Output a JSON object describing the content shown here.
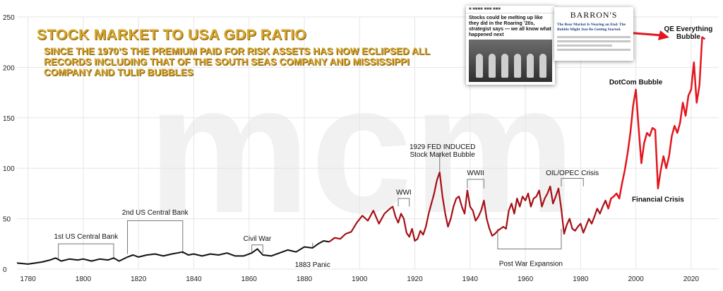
{
  "header": {
    "title": "STOCK MARKET TO USA GDP RATIO",
    "subtitle": "SINCE THE 1970’s THE PREMIUM PAID FOR RISK ASSETS HAS NOW ECLIPSED ALL RECORDS INCLUDING THAT OF THE SOUTH SEAS COMPANY AND MISSISSIPPI COMPANY AND TULIP BUBBLES"
  },
  "clippings": {
    "marketwatch_headline": "Stocks could be melting up like they did in the Roaring ’20s, strategist says — we all know what happened next",
    "barrons_logo": "BARRON'S",
    "barrons_headline": "The Bear Market Is Nearing an End. The Bubble Might Just Be Getting Started."
  },
  "colors": {
    "line_early": "#111111",
    "line_late": "#a50f15",
    "line_recent": "#e3161e",
    "gold": "#d9a629",
    "grid": "#e6e6e6"
  },
  "chart_data": {
    "type": "line",
    "xlim": [
      1776,
      2030
    ],
    "ylim": [
      0,
      250
    ],
    "x_ticks": [
      1780,
      1800,
      1820,
      1840,
      1860,
      1880,
      1900,
      1920,
      1940,
      1960,
      1980,
      2000,
      2020
    ],
    "y_ticks": [
      0,
      50,
      100,
      150,
      200,
      250
    ],
    "grid": true,
    "series": [
      {
        "values": [
          [
            1776,
            6
          ],
          [
            1780,
            5
          ],
          [
            1785,
            7
          ],
          [
            1788,
            9
          ],
          [
            1790,
            11
          ],
          [
            1792,
            8
          ],
          [
            1795,
            10
          ],
          [
            1798,
            9
          ],
          [
            1800,
            10
          ],
          [
            1803,
            8
          ],
          [
            1806,
            10
          ],
          [
            1809,
            9
          ],
          [
            1811,
            11
          ],
          [
            1813,
            8
          ],
          [
            1816,
            12
          ],
          [
            1818,
            14
          ],
          [
            1820,
            12
          ],
          [
            1823,
            14
          ],
          [
            1826,
            15
          ],
          [
            1829,
            13
          ],
          [
            1832,
            15
          ],
          [
            1834,
            16
          ],
          [
            1836,
            17
          ],
          [
            1838,
            14
          ],
          [
            1840,
            15
          ],
          [
            1843,
            13
          ],
          [
            1846,
            15
          ],
          [
            1849,
            14
          ],
          [
            1852,
            16
          ],
          [
            1855,
            13
          ],
          [
            1858,
            13
          ],
          [
            1861,
            16
          ],
          [
            1863,
            20
          ],
          [
            1865,
            14
          ],
          [
            1868,
            13
          ],
          [
            1871,
            16
          ],
          [
            1874,
            19
          ],
          [
            1877,
            17
          ],
          [
            1880,
            22
          ],
          [
            1883,
            21
          ],
          [
            1885,
            25
          ],
          [
            1887,
            28
          ],
          [
            1889,
            27
          ],
          [
            1891,
            31
          ],
          [
            1893,
            30
          ],
          [
            1895,
            35
          ],
          [
            1897,
            37
          ],
          [
            1899,
            46
          ],
          [
            1901,
            53
          ],
          [
            1903,
            48
          ],
          [
            1905,
            58
          ],
          [
            1907,
            45
          ],
          [
            1909,
            55
          ],
          [
            1911,
            60
          ],
          [
            1912,
            62
          ],
          [
            1913,
            52
          ],
          [
            1914,
            46
          ],
          [
            1915,
            55
          ],
          [
            1916,
            50
          ],
          [
            1917,
            36
          ],
          [
            1918,
            32
          ],
          [
            1919,
            40
          ],
          [
            1920,
            28
          ],
          [
            1921,
            30
          ],
          [
            1922,
            38
          ],
          [
            1923,
            34
          ],
          [
            1924,
            42
          ],
          [
            1925,
            55
          ],
          [
            1926,
            65
          ],
          [
            1927,
            75
          ],
          [
            1928,
            88
          ],
          [
            1929,
            96
          ],
          [
            1930,
            72
          ],
          [
            1931,
            55
          ],
          [
            1932,
            42
          ],
          [
            1933,
            50
          ],
          [
            1934,
            62
          ],
          [
            1935,
            70
          ],
          [
            1936,
            72
          ],
          [
            1937,
            62
          ],
          [
            1938,
            55
          ],
          [
            1939,
            78
          ],
          [
            1940,
            62
          ],
          [
            1941,
            58
          ],
          [
            1942,
            48
          ],
          [
            1943,
            52
          ],
          [
            1944,
            58
          ],
          [
            1945,
            68
          ],
          [
            1946,
            50
          ],
          [
            1947,
            40
          ],
          [
            1948,
            33
          ],
          [
            1949,
            35
          ],
          [
            1950,
            38
          ],
          [
            1951,
            40
          ],
          [
            1952,
            42
          ],
          [
            1953,
            40
          ],
          [
            1954,
            58
          ],
          [
            1955,
            65
          ],
          [
            1956,
            55
          ],
          [
            1957,
            70
          ],
          [
            1958,
            62
          ],
          [
            1959,
            72
          ],
          [
            1960,
            68
          ],
          [
            1961,
            75
          ],
          [
            1962,
            62
          ],
          [
            1963,
            70
          ],
          [
            1964,
            72
          ],
          [
            1965,
            78
          ],
          [
            1966,
            62
          ],
          [
            1967,
            70
          ],
          [
            1968,
            75
          ],
          [
            1969,
            82
          ],
          [
            1970,
            65
          ],
          [
            1971,
            72
          ],
          [
            1972,
            80
          ],
          [
            1973,
            60
          ],
          [
            1974,
            35
          ],
          [
            1975,
            44
          ],
          [
            1976,
            50
          ],
          [
            1977,
            40
          ],
          [
            1978,
            38
          ],
          [
            1979,
            42
          ],
          [
            1980,
            45
          ],
          [
            1981,
            36
          ],
          [
            1982,
            43
          ],
          [
            1983,
            50
          ],
          [
            1984,
            45
          ],
          [
            1985,
            52
          ],
          [
            1986,
            60
          ],
          [
            1987,
            55
          ],
          [
            1988,
            62
          ],
          [
            1989,
            68
          ],
          [
            1990,
            60
          ],
          [
            1991,
            70
          ],
          [
            1992,
            72
          ],
          [
            1993,
            75
          ],
          [
            1994,
            70
          ],
          [
            1995,
            85
          ],
          [
            1996,
            98
          ],
          [
            1997,
            115
          ],
          [
            1998,
            135
          ],
          [
            1999,
            162
          ],
          [
            2000,
            178
          ],
          [
            2001,
            140
          ],
          [
            2002,
            105
          ],
          [
            2003,
            125
          ],
          [
            2004,
            135
          ],
          [
            2005,
            132
          ],
          [
            2006,
            140
          ],
          [
            2007,
            138
          ],
          [
            2008,
            80
          ],
          [
            2009,
            98
          ],
          [
            2010,
            112
          ],
          [
            2011,
            100
          ],
          [
            2012,
            112
          ],
          [
            2013,
            132
          ],
          [
            2014,
            142
          ],
          [
            2015,
            135
          ],
          [
            2016,
            145
          ],
          [
            2017,
            165
          ],
          [
            2018,
            152
          ],
          [
            2019,
            172
          ],
          [
            2020,
            178
          ],
          [
            2021,
            205
          ],
          [
            2022,
            165
          ],
          [
            2023,
            182
          ],
          [
            2024,
            230
          ],
          [
            2025,
            228
          ]
        ]
      }
    ],
    "annotations": [
      {
        "text": "1st US Central Bank",
        "x1": 1791,
        "x2": 1811,
        "y1": 10,
        "y2": 25,
        "lx": 1801,
        "ly": 30
      },
      {
        "text": "2nd US Central Bank",
        "x1": 1816,
        "x2": 1836,
        "y1": 15,
        "y2": 48,
        "lx": 1826,
        "ly": 54
      },
      {
        "text": "Civil War",
        "x1": 1861,
        "x2": 1865,
        "y1": 16,
        "y2": 24,
        "lx": 1863,
        "ly": 28
      },
      {
        "text": "1883 Panic",
        "x1": 1883,
        "x2": 1883,
        "y1": 21,
        "y2": 26,
        "lx": 1883,
        "ly": 2
      },
      {
        "text": "WWI",
        "x1": 1914,
        "x2": 1918,
        "y1": 62,
        "y2": 70,
        "lx": 1916,
        "ly": 74
      },
      {
        "text": "1929 FED INDUCED\nStock Market Bubble",
        "x1": 1929,
        "x2": 1929,
        "y1": 97,
        "y2": 116,
        "lx": 1930,
        "ly": 119
      },
      {
        "text": "WWII",
        "x1": 1939,
        "x2": 1945,
        "y1": 80,
        "y2": 89,
        "lx": 1942,
        "ly": 93
      },
      {
        "text": "OIL/OPEC Crisis",
        "x1": 1973,
        "x2": 1981,
        "y1": 82,
        "y2": 90,
        "lx": 1977,
        "ly": 93
      },
      {
        "text": "Post War Expansion",
        "x1": 1950,
        "x2": 1973,
        "y1": 40,
        "y2": 20,
        "lx": 1962,
        "ly": 3
      },
      {
        "text": "DotCom Bubble",
        "lx": 2000,
        "ly": 183
      },
      {
        "text": "Financial Crisis",
        "lx": 2008,
        "ly": 67
      },
      {
        "text": "QE Everything\nBubble",
        "lx": 2019,
        "ly": 236
      }
    ]
  }
}
